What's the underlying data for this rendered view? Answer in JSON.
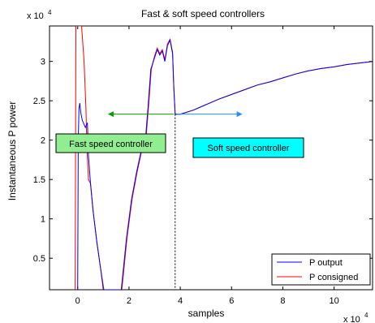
{
  "chart_data": {
    "type": "line",
    "title": "Fast & soft speed controllers",
    "xlabel": "samples",
    "ylabel": "Instantaneous P power",
    "x_multiplier": "x 10",
    "x_multiplier_exp": "4",
    "y_multiplier": "x 10",
    "y_multiplier_exp": "4",
    "xlim": [
      -1.1,
      11.5
    ],
    "ylim": [
      0.1,
      3.45
    ],
    "xticks": [
      0,
      2,
      4,
      6,
      8,
      10
    ],
    "yticks": [
      0.5,
      1,
      1.5,
      2,
      2.5,
      3
    ],
    "grid": false,
    "legend_position": "bottom-right",
    "colors": {
      "p_output": "#0000ff",
      "p_consigned": "#ff0000",
      "fast_arrow": "#00a000",
      "soft_arrow": "#1f8fff",
      "fast_box": "#90ee90",
      "soft_box": "#00ffff"
    },
    "series": [
      {
        "name": "P output",
        "color": "#0000ff",
        "points": [
          [
            0.0,
            0.1
          ],
          [
            0.02,
            2.0
          ],
          [
            0.05,
            2.4
          ],
          [
            0.08,
            2.47
          ],
          [
            0.12,
            2.35
          ],
          [
            0.18,
            2.25
          ],
          [
            0.25,
            2.2
          ],
          [
            0.3,
            2.16
          ],
          [
            0.38,
            2.22
          ],
          [
            0.42,
            1.8
          ],
          [
            0.5,
            1.45
          ],
          [
            0.6,
            1.1
          ],
          [
            0.75,
            0.7
          ],
          [
            0.9,
            0.35
          ],
          [
            1.0,
            0.1
          ],
          [
            1.7,
            0.1
          ],
          [
            1.9,
            0.75
          ],
          [
            2.1,
            1.25
          ],
          [
            2.3,
            1.6
          ],
          [
            2.5,
            1.9
          ],
          [
            2.65,
            2.05
          ],
          [
            2.75,
            2.45
          ],
          [
            2.85,
            2.9
          ],
          [
            3.0,
            3.05
          ],
          [
            3.1,
            3.15
          ],
          [
            3.2,
            3.08
          ],
          [
            3.3,
            3.13
          ],
          [
            3.4,
            3.0
          ],
          [
            3.5,
            3.2
          ],
          [
            3.6,
            3.27
          ],
          [
            3.7,
            3.1
          ],
          [
            3.75,
            2.65
          ],
          [
            3.8,
            2.33
          ],
          [
            4.0,
            2.33
          ],
          [
            4.5,
            2.38
          ],
          [
            5.0,
            2.45
          ],
          [
            5.5,
            2.52
          ],
          [
            6.0,
            2.58
          ],
          [
            6.5,
            2.64
          ],
          [
            7.0,
            2.7
          ],
          [
            7.5,
            2.74
          ],
          [
            8.0,
            2.79
          ],
          [
            8.5,
            2.84
          ],
          [
            9.0,
            2.88
          ],
          [
            9.5,
            2.91
          ],
          [
            10.0,
            2.93
          ],
          [
            10.5,
            2.96
          ],
          [
            11.0,
            2.98
          ],
          [
            11.5,
            3.0
          ]
        ]
      },
      {
        "name": "P consigned",
        "color": "#ff0000",
        "points": [
          [
            -0.1,
            0.1
          ],
          [
            -0.07,
            3.45
          ],
          [
            0.15,
            3.45
          ],
          [
            0.25,
            3.0
          ],
          [
            0.32,
            2.4
          ],
          [
            0.36,
            1.9
          ],
          [
            0.42,
            1.5
          ],
          [
            0.5,
            1.45
          ],
          [
            0.6,
            1.1
          ],
          [
            0.75,
            0.7
          ],
          [
            0.9,
            0.35
          ],
          [
            1.02,
            0.1
          ],
          [
            1.72,
            0.1
          ],
          [
            1.92,
            0.75
          ],
          [
            2.12,
            1.25
          ],
          [
            2.32,
            1.6
          ],
          [
            2.52,
            1.9
          ],
          [
            2.67,
            2.05
          ],
          [
            2.77,
            2.45
          ],
          [
            2.87,
            2.9
          ],
          [
            3.0,
            3.07
          ],
          [
            3.1,
            3.17
          ],
          [
            3.2,
            3.1
          ],
          [
            3.3,
            3.15
          ],
          [
            3.4,
            3.02
          ],
          [
            3.5,
            3.22
          ],
          [
            3.6,
            3.28
          ],
          [
            3.7,
            3.12
          ],
          [
            3.75,
            2.66
          ],
          [
            3.8,
            2.33
          ],
          [
            4.0,
            2.33
          ],
          [
            4.5,
            2.38
          ],
          [
            5.0,
            2.45
          ],
          [
            5.5,
            2.52
          ],
          [
            6.0,
            2.58
          ],
          [
            6.5,
            2.64
          ],
          [
            7.0,
            2.7
          ],
          [
            7.5,
            2.74
          ],
          [
            8.0,
            2.79
          ],
          [
            8.5,
            2.84
          ],
          [
            9.0,
            2.88
          ],
          [
            9.5,
            2.91
          ],
          [
            10.0,
            2.93
          ],
          [
            10.5,
            2.96
          ],
          [
            11.0,
            2.98
          ],
          [
            11.5,
            3.0
          ]
        ]
      }
    ],
    "annotations": {
      "fast_label": "Fast speed controller",
      "soft_label": "Soft speed controller",
      "divider_x": 3.8,
      "fast_arrow": {
        "x_from": 3.75,
        "x_to": 1.2,
        "y": 2.33
      },
      "soft_arrow": {
        "x_from": 3.85,
        "x_to": 6.4,
        "y": 2.33
      }
    }
  }
}
